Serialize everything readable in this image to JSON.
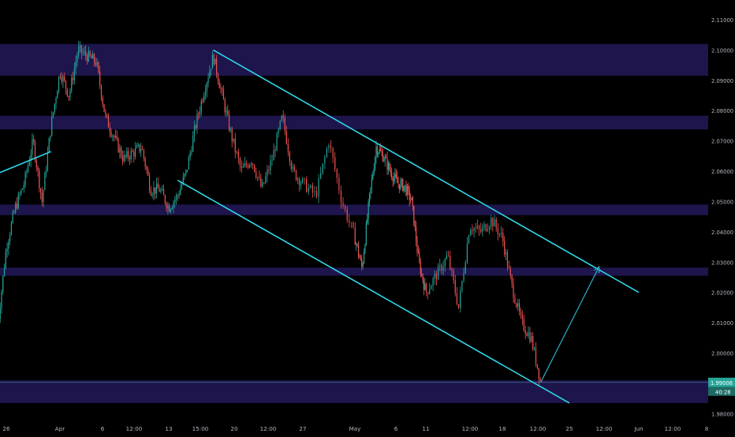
{
  "chart_data": {
    "type": "candlestick",
    "title": "",
    "xlabel": "",
    "ylabel": "",
    "x_tick_labels": [
      "26",
      "Apr",
      "6",
      "12:00",
      "13",
      "15:00",
      "20",
      "12:00",
      "27",
      "May",
      "6",
      "11",
      "12:00",
      "18",
      "12:00",
      "25",
      "12:00",
      "Jun",
      "12:00",
      "8"
    ],
    "y_tick_labels": [
      "2.11000",
      "2.10000",
      "2.09000",
      "2.08000",
      "2.07000",
      "2.06000",
      "2.05000",
      "2.04000",
      "2.03000",
      "2.02000",
      "2.01000",
      "2.00000",
      "1.99000",
      "1.98000"
    ],
    "ylim": [
      1.9775,
      2.1165
    ],
    "grid": false,
    "last_price": "1.99006",
    "countdown": "40:28",
    "colors": {
      "background": "#000000",
      "up_candle": "#26a69a",
      "down_candle": "#ef5350",
      "zone_fill": "#1f1650",
      "channel_line": "#2fd6e6",
      "projection_arrow": "#2ab0c8",
      "price_label": "#26a69a",
      "axis_text": "#b2b5be"
    },
    "price_path": [
      {
        "x": "Mar 25",
        "y": 2.008
      },
      {
        "x": "Mar 26",
        "y": 2.035
      },
      {
        "x": "Mar 27",
        "y": 2.048
      },
      {
        "x": "Mar 28",
        "y": 2.056
      },
      {
        "x": "Mar 29",
        "y": 2.07
      },
      {
        "x": "Mar 30",
        "y": 2.05
      },
      {
        "x": "Mar 31",
        "y": 2.075
      },
      {
        "x": "Apr 1",
        "y": 2.093
      },
      {
        "x": "Apr 2",
        "y": 2.085
      },
      {
        "x": "Apr 3",
        "y": 2.1
      },
      {
        "x": "Apr 5",
        "y": 2.096
      },
      {
        "x": "Apr 6",
        "y": 2.078
      },
      {
        "x": "Apr 8",
        "y": 2.064
      },
      {
        "x": "Apr 9",
        "y": 2.066
      },
      {
        "x": "Apr 10",
        "y": 2.068
      },
      {
        "x": "Apr 11",
        "y": 2.054
      },
      {
        "x": "Apr 12",
        "y": 2.054
      },
      {
        "x": "Apr 13",
        "y": 2.048
      },
      {
        "x": "Apr 14",
        "y": 2.052
      },
      {
        "x": "Apr 15",
        "y": 2.06
      },
      {
        "x": "Apr 16",
        "y": 2.075
      },
      {
        "x": "Apr 17",
        "y": 2.087
      },
      {
        "x": "Apr 18",
        "y": 2.098
      },
      {
        "x": "Apr 19",
        "y": 2.085
      },
      {
        "x": "Apr 20",
        "y": 2.072
      },
      {
        "x": "Apr 21",
        "y": 2.06
      },
      {
        "x": "Apr 22",
        "y": 2.064
      },
      {
        "x": "Apr 23",
        "y": 2.054
      },
      {
        "x": "Apr 24",
        "y": 2.064
      },
      {
        "x": "Apr 25",
        "y": 2.078
      },
      {
        "x": "Apr 26",
        "y": 2.06
      },
      {
        "x": "Apr 27",
        "y": 2.056
      },
      {
        "x": "Apr 28",
        "y": 2.052
      },
      {
        "x": "Apr 29",
        "y": 2.07
      },
      {
        "x": "Apr 30",
        "y": 2.05
      },
      {
        "x": "May 1",
        "y": 2.038
      },
      {
        "x": "May 2",
        "y": 2.028
      },
      {
        "x": "May 3",
        "y": 2.05
      },
      {
        "x": "May 4",
        "y": 2.068
      },
      {
        "x": "May 5",
        "y": 2.065
      },
      {
        "x": "May 6",
        "y": 2.06
      },
      {
        "x": "May 7",
        "y": 2.056
      },
      {
        "x": "May 8",
        "y": 2.055
      },
      {
        "x": "May 9",
        "y": 2.05
      },
      {
        "x": "May 10",
        "y": 2.03
      },
      {
        "x": "May 11",
        "y": 2.02
      },
      {
        "x": "May 12",
        "y": 2.026
      },
      {
        "x": "May 13",
        "y": 2.032
      },
      {
        "x": "May 14",
        "y": 2.015
      },
      {
        "x": "May 15",
        "y": 2.042
      },
      {
        "x": "May 16",
        "y": 2.04
      },
      {
        "x": "May 17",
        "y": 2.044
      },
      {
        "x": "May 18",
        "y": 2.038
      },
      {
        "x": "May 19",
        "y": 2.022
      },
      {
        "x": "May 20",
        "y": 2.01
      },
      {
        "x": "May 21",
        "y": 2.005
      },
      {
        "x": "May 22",
        "y": 1.9905
      }
    ],
    "zones": [
      {
        "from": 2.0915,
        "to": 2.102
      },
      {
        "from": 2.0738,
        "to": 2.0783
      },
      {
        "from": 2.0455,
        "to": 2.049
      },
      {
        "from": 2.0255,
        "to": 2.0282
      },
      {
        "from": 1.9835,
        "to": 1.991
      }
    ],
    "channel_lines": [
      {
        "from": {
          "x": "Apr 18",
          "y": 2.1
        },
        "to": {
          "x": "Jun 1",
          "y": 2.02
        }
      },
      {
        "from": {
          "x": "Apr 14",
          "y": 2.057
        },
        "to": {
          "x": "May 25",
          "y": 1.9835
        }
      },
      {
        "from": {
          "x": "Mar 24",
          "y": 2.058
        },
        "to": {
          "x": "Mar 31",
          "y": 2.0665
        }
      }
    ],
    "projection_arrow": {
      "from": {
        "x": "May 22",
        "y": 1.9903
      },
      "to": {
        "x": "May 28",
        "y": 2.0285
      }
    },
    "last_price_line": 1.9903
  }
}
